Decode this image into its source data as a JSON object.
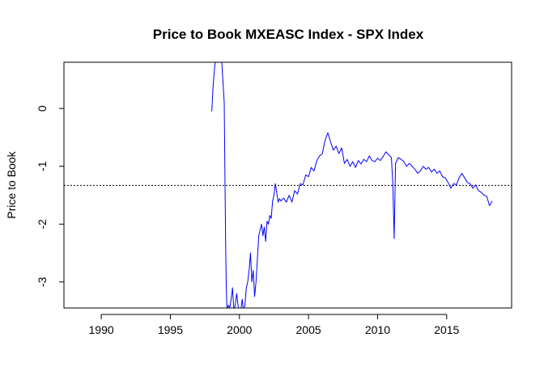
{
  "chart_data": {
    "type": "line",
    "title": "Price to Book MXEASC Index - SPX Index",
    "xlabel": "",
    "ylabel": "Price to Book",
    "xlim": [
      1987.3,
      2019.7
    ],
    "ylim": [
      -3.45,
      0.8
    ],
    "x_ticks": [
      1990,
      1995,
      2000,
      2005,
      2010,
      2015
    ],
    "y_ticks": [
      0,
      -1,
      -2,
      -3
    ],
    "reference_line": {
      "y": -1.33,
      "style": "dotted",
      "color": "#000000"
    },
    "series": [
      {
        "color": "#0000ff",
        "x": [
          1998.0,
          1998.1,
          1998.2,
          1998.3,
          1998.4,
          1998.5,
          1998.6,
          1998.7,
          1998.8,
          1998.9,
          1999.0,
          1999.05,
          1999.1,
          1999.2,
          1999.3,
          1999.4,
          1999.5,
          1999.6,
          1999.7,
          1999.8,
          1999.9,
          2000.0,
          2000.1,
          2000.2,
          2000.3,
          2000.4,
          2000.5,
          2000.6,
          2000.7,
          2000.8,
          2000.9,
          2001.0,
          2001.1,
          2001.2,
          2001.3,
          2001.4,
          2001.5,
          2001.6,
          2001.7,
          2001.8,
          2001.9,
          2002.0,
          2002.1,
          2002.2,
          2002.3,
          2002.4,
          2002.5,
          2002.6,
          2002.7,
          2002.8,
          2002.9,
          2003.0,
          2003.2,
          2003.4,
          2003.6,
          2003.8,
          2004.0,
          2004.2,
          2004.4,
          2004.6,
          2004.8,
          2005.0,
          2005.2,
          2005.4,
          2005.6,
          2005.8,
          2006.0,
          2006.2,
          2006.4,
          2006.6,
          2006.8,
          2007.0,
          2007.2,
          2007.4,
          2007.6,
          2007.8,
          2008.0,
          2008.2,
          2008.4,
          2008.6,
          2008.8,
          2009.0,
          2009.2,
          2009.4,
          2009.6,
          2009.8,
          2010.0,
          2010.2,
          2010.4,
          2010.6,
          2010.8,
          2011.0,
          2011.1,
          2011.2,
          2011.3,
          2011.4,
          2011.5,
          2011.7,
          2011.9,
          2012.1,
          2012.3,
          2012.5,
          2012.7,
          2012.9,
          2013.1,
          2013.3,
          2013.5,
          2013.7,
          2013.9,
          2014.1,
          2014.3,
          2014.5,
          2014.7,
          2014.9,
          2015.1,
          2015.3,
          2015.5,
          2015.7,
          2015.9,
          2016.1,
          2016.3,
          2016.5,
          2016.7,
          2016.9,
          2017.1,
          2017.3,
          2017.5,
          2017.7,
          2017.9,
          2018.1,
          2018.3
        ],
        "y": [
          -0.05,
          0.4,
          0.7,
          0.9,
          0.85,
          1.2,
          1.0,
          0.9,
          0.5,
          0.1,
          -2.3,
          -3.1,
          -3.5,
          -3.4,
          -3.45,
          -3.3,
          -3.1,
          -3.5,
          -3.4,
          -3.2,
          -3.4,
          -3.6,
          -3.5,
          -3.3,
          -3.5,
          -3.4,
          -3.1,
          -3.0,
          -2.8,
          -2.5,
          -3.0,
          -2.8,
          -3.25,
          -3.0,
          -2.6,
          -2.2,
          -2.1,
          -2.0,
          -2.2,
          -2.05,
          -2.3,
          -1.95,
          -2.0,
          -1.85,
          -1.9,
          -1.6,
          -1.5,
          -1.3,
          -1.45,
          -1.62,
          -1.56,
          -1.6,
          -1.55,
          -1.62,
          -1.5,
          -1.62,
          -1.42,
          -1.48,
          -1.3,
          -1.32,
          -1.15,
          -1.18,
          -1.02,
          -1.08,
          -0.9,
          -0.82,
          -0.78,
          -0.55,
          -0.42,
          -0.58,
          -0.72,
          -0.65,
          -0.78,
          -0.68,
          -0.95,
          -0.88,
          -1.0,
          -0.92,
          -1.02,
          -0.9,
          -0.96,
          -0.88,
          -0.92,
          -0.82,
          -0.9,
          -0.92,
          -0.86,
          -0.9,
          -0.83,
          -0.75,
          -0.8,
          -0.85,
          -1.3,
          -2.25,
          -0.95,
          -0.9,
          -0.85,
          -0.88,
          -0.92,
          -1.0,
          -0.95,
          -1.0,
          -1.05,
          -1.12,
          -1.08,
          -1.0,
          -1.05,
          -1.02,
          -1.1,
          -1.05,
          -1.12,
          -1.08,
          -1.18,
          -1.2,
          -1.28,
          -1.38,
          -1.3,
          -1.32,
          -1.2,
          -1.12,
          -1.2,
          -1.28,
          -1.3,
          -1.38,
          -1.32,
          -1.42,
          -1.45,
          -1.5,
          -1.52,
          -1.68,
          -1.6
        ]
      }
    ]
  }
}
